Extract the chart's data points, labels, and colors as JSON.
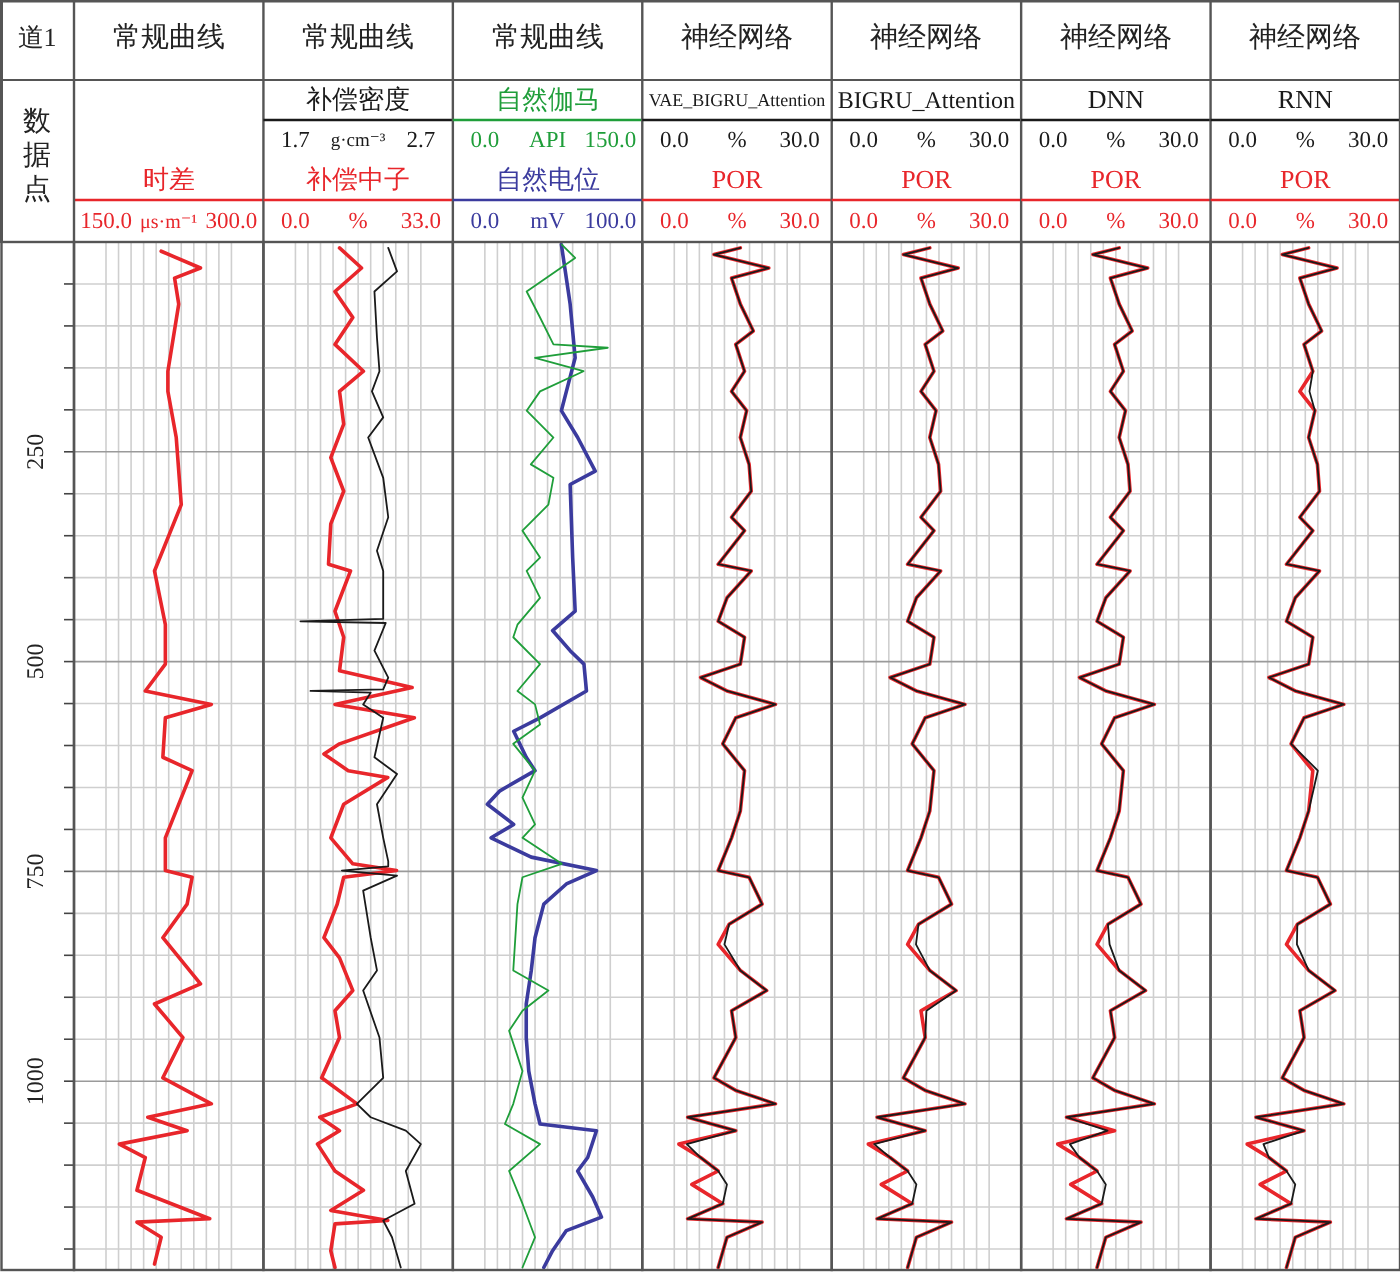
{
  "chart_data": [
    {
      "type": "line",
      "title": "常规曲线",
      "ylabel": "数据点",
      "annotations": [
        "道1"
      ],
      "orientation": "horizontal",
      "grid": true,
      "ylim": [
        1225,
        0
      ],
      "yticks": [
        {
          "value": 50,
          "label": null
        },
        {
          "value": 100,
          "label": null
        },
        {
          "value": 150,
          "label": null
        },
        {
          "value": 200,
          "label": null
        },
        250,
        {
          "value": 300,
          "label": null
        },
        {
          "value": 350,
          "label": null
        },
        {
          "value": 400,
          "label": null
        },
        {
          "value": 450,
          "label": null
        },
        500,
        {
          "value": 550,
          "label": null
        },
        {
          "value": 600,
          "label": null
        },
        {
          "value": 650,
          "label": null
        },
        {
          "value": 700,
          "label": null
        },
        750,
        {
          "value": 800,
          "label": null
        },
        {
          "value": 850,
          "label": null
        },
        {
          "value": 900,
          "label": null
        },
        {
          "value": 950,
          "label": null
        },
        1000,
        {
          "value": 1050,
          "label": null
        },
        {
          "value": 1100,
          "label": null
        },
        {
          "value": 1150,
          "label": null
        },
        {
          "value": 1200,
          "label": null
        }
      ],
      "xlim": [
        150,
        300
      ],
      "xticks": [
        {
          "value": 150,
          "label": "150.0"
        },
        {
          "value": 225,
          "label": "μs·m⁻¹"
        },
        {
          "value": 300,
          "label": "300.0"
        }
      ],
      "series": [
        {
          "name": "时差",
          "color": "#e8262b",
          "x": [
            11,
            31,
            43,
            74,
            154,
            178,
            233,
            313,
            392,
            456,
            503,
            535,
            551,
            567,
            614,
            630,
            710,
            749,
            757,
            789,
            829,
            884,
            908,
            948,
            996,
            1027,
            1043,
            1059,
            1075,
            1091,
            1130,
            1164,
            1168,
            1186,
            1218
          ],
          "values": [
            216,
            263,
            232,
            237,
            224,
            224,
            234,
            240,
            208,
            221,
            221,
            197,
            276,
            221,
            218,
            253,
            221,
            221,
            253,
            247,
            218,
            263,
            208,
            242,
            218,
            276,
            200,
            247,
            166,
            197,
            187,
            274,
            187,
            216,
            208
          ]
        }
      ]
    },
    {
      "type": "line",
      "title": "常规曲线",
      "orientation": "horizontal",
      "grid": true,
      "tick_labels": "x",
      "ylim": [
        1225,
        0
      ],
      "yticks": [
        {
          "value": 50,
          "label": null
        },
        {
          "value": 100,
          "label": null
        },
        {
          "value": 150,
          "label": null
        },
        {
          "value": 200,
          "label": null
        },
        250,
        {
          "value": 300,
          "label": null
        },
        {
          "value": 350,
          "label": null
        },
        {
          "value": 400,
          "label": null
        },
        {
          "value": 450,
          "label": null
        },
        500,
        {
          "value": 550,
          "label": null
        },
        {
          "value": 600,
          "label": null
        },
        {
          "value": 650,
          "label": null
        },
        {
          "value": 700,
          "label": null
        },
        750,
        {
          "value": 800,
          "label": null
        },
        {
          "value": 850,
          "label": null
        },
        {
          "value": 900,
          "label": null
        },
        {
          "value": 950,
          "label": null
        },
        1000,
        {
          "value": 1050,
          "label": null
        },
        {
          "value": 1100,
          "label": null
        },
        {
          "value": 1150,
          "label": null
        },
        {
          "value": 1200,
          "label": null
        }
      ],
      "xlim": [
        0,
        33
      ],
      "xticks": [
        {
          "value": 0,
          "label": "0.0"
        },
        {
          "value": 16.5,
          "label": "%"
        },
        {
          "value": 33,
          "label": "33.0"
        }
      ],
      "x2lim": [
        1.7,
        2.7
      ],
      "x2ticks": [
        1.7,
        {
          "value": 2.2,
          "label": "g·cm⁻³"
        },
        2.7
      ],
      "series": [
        {
          "name": "补偿密度",
          "color": "#1a1a1a",
          "axis": "x2",
          "x": [
            7,
            35,
            59,
            114,
            154,
            178,
            209,
            233,
            281,
            328,
            368,
            392,
            449,
            452,
            454,
            487,
            519,
            533,
            535,
            537,
            551,
            567,
            614,
            634,
            670,
            710,
            738,
            744,
            749,
            755,
            773,
            829,
            868,
            892,
            948,
            996,
            1027,
            1043,
            1059,
            1075,
            1107,
            1146,
            1166,
            1186,
            1222
          ],
          "values": [
            2.44,
            2.51,
            2.33,
            2.35,
            2.37,
            2.31,
            2.4,
            2.28,
            2.4,
            2.44,
            2.35,
            2.4,
            2.4,
            1.74,
            2.42,
            2.33,
            2.44,
            2.4,
            1.82,
            2.3,
            2.24,
            2.4,
            2.33,
            2.51,
            2.35,
            2.4,
            2.44,
            2.44,
            2.07,
            2.51,
            2.24,
            2.3,
            2.35,
            2.24,
            2.37,
            2.4,
            2.19,
            2.3,
            2.58,
            2.7,
            2.58,
            2.65,
            2.4,
            2.47,
            2.54
          ]
        },
        {
          "name": "补偿中子",
          "color": "#e8262b",
          "x": [
            7,
            31,
            59,
            90,
            122,
            154,
            178,
            217,
            257,
            297,
            336,
            384,
            392,
            440,
            471,
            511,
            531,
            551,
            567,
            598,
            610,
            630,
            638,
            670,
            710,
            741,
            749,
            757,
            789,
            829,
            853,
            892,
            916,
            948,
            996,
            1027,
            1043,
            1059,
            1075,
            1107,
            1130,
            1154,
            1166,
            1170,
            1202,
            1222
          ],
          "values": [
            11.6,
            17.4,
            10.4,
            15.1,
            10.4,
            17.9,
            11.6,
            12.7,
            9.3,
            12.7,
            9.3,
            8.7,
            14.5,
            10.4,
            12.7,
            11.6,
            30.7,
            10.4,
            31.3,
            11.6,
            7.5,
            13.9,
            24.3,
            12.7,
            9.3,
            15.1,
            26.6,
            12.7,
            11.0,
            7.5,
            11.6,
            15.1,
            10.4,
            11.6,
            6.9,
            16.2,
            6.4,
            11.6,
            5.8,
            10.4,
            17.9,
            9.3,
            24.3,
            10.4,
            9.3,
            10.4
          ]
        }
      ]
    },
    {
      "type": "line",
      "title": "常规曲线",
      "orientation": "horizontal",
      "grid": true,
      "tick_labels": "x",
      "ylim": [
        1225,
        0
      ],
      "yticks": [
        {
          "value": 50,
          "label": null
        },
        {
          "value": 100,
          "label": null
        },
        {
          "value": 150,
          "label": null
        },
        {
          "value": 200,
          "label": null
        },
        250,
        {
          "value": 300,
          "label": null
        },
        {
          "value": 350,
          "label": null
        },
        {
          "value": 400,
          "label": null
        },
        {
          "value": 450,
          "label": null
        },
        500,
        {
          "value": 550,
          "label": null
        },
        {
          "value": 600,
          "label": null
        },
        {
          "value": 650,
          "label": null
        },
        {
          "value": 700,
          "label": null
        },
        750,
        {
          "value": 800,
          "label": null
        },
        {
          "value": 850,
          "label": null
        },
        {
          "value": 900,
          "label": null
        },
        {
          "value": 950,
          "label": null
        },
        1000,
        {
          "value": 1050,
          "label": null
        },
        {
          "value": 1100,
          "label": null
        },
        {
          "value": 1150,
          "label": null
        },
        {
          "value": 1200,
          "label": null
        }
      ],
      "xlim": [
        0,
        100
      ],
      "xticks": [
        {
          "value": 0,
          "label": "0.0"
        },
        {
          "value": 50,
          "label": "mV"
        },
        {
          "value": 100,
          "label": "100.0"
        }
      ],
      "x2lim": [
        0,
        150
      ],
      "x2ticks": [
        {
          "value": 0,
          "label": "0.0"
        },
        {
          "value": 75,
          "label": "API"
        },
        {
          "value": 150,
          "label": "150.0"
        }
      ],
      "series": [
        {
          "name": "自然伽马",
          "color": "#1f9e3a",
          "axis": "x2",
          "x": [
            3,
            19,
            59,
            90,
            122,
            126,
            138,
            154,
            178,
            201,
            233,
            265,
            281,
            313,
            344,
            376,
            392,
            424,
            456,
            471,
            503,
            535,
            551,
            575,
            598,
            630,
            662,
            694,
            710,
            741,
            757,
            789,
            868,
            892,
            916,
            940,
            988,
            1027,
            1051,
            1075,
            1107,
            1146,
            1186,
            1222
          ],
          "values": [
            92,
            108,
            50,
            66,
            82,
            147,
            60,
            118,
            66,
            50,
            82,
            55,
            82,
            76,
            45,
            66,
            50,
            66,
            39,
            34,
            66,
            39,
            60,
            66,
            34,
            60,
            45,
            60,
            45,
            92,
            45,
            39,
            34,
            76,
            45,
            29,
            45,
            34,
            24,
            66,
            29,
            45,
            60,
            45
          ]
        },
        {
          "name": "自然电位",
          "color": "#3b3b9e",
          "x": [
            3,
            74,
            138,
            178,
            201,
            233,
            273,
            289,
            376,
            440,
            463,
            487,
            503,
            535,
            567,
            583,
            614,
            630,
            654,
            670,
            694,
            710,
            733,
            749,
            765,
            789,
            829,
            868,
            908,
            948,
            988,
            1027,
            1051,
            1059,
            1091,
            1107,
            1138,
            1162,
            1178,
            1202,
            1222
          ],
          "values": [
            61,
            68,
            72,
            65,
            61,
            74,
            88,
            68,
            70,
            72,
            54,
            68,
            79,
            81,
            44,
            23,
            33,
            40,
            12,
            2,
            23,
            5,
            37,
            89,
            65,
            47,
            40,
            37,
            33,
            33,
            35,
            40,
            44,
            89,
            82,
            74,
            86,
            93,
            65,
            54,
            47
          ]
        }
      ]
    },
    {
      "type": "line",
      "title": "神经网络",
      "orientation": "horizontal",
      "grid": true,
      "tick_labels": "x",
      "ylim": [
        1225,
        0
      ],
      "yticks": [
        {
          "value": 50,
          "label": null
        },
        {
          "value": 100,
          "label": null
        },
        {
          "value": 150,
          "label": null
        },
        {
          "value": 200,
          "label": null
        },
        250,
        {
          "value": 300,
          "label": null
        },
        {
          "value": 350,
          "label": null
        },
        {
          "value": 400,
          "label": null
        },
        {
          "value": 450,
          "label": null
        },
        500,
        {
          "value": 550,
          "label": null
        },
        {
          "value": 600,
          "label": null
        },
        {
          "value": 650,
          "label": null
        },
        {
          "value": 700,
          "label": null
        },
        750,
        {
          "value": 800,
          "label": null
        },
        {
          "value": 850,
          "label": null
        },
        {
          "value": 900,
          "label": null
        },
        {
          "value": 950,
          "label": null
        },
        1000,
        {
          "value": 1050,
          "label": null
        },
        {
          "value": 1100,
          "label": null
        },
        {
          "value": 1150,
          "label": null
        },
        {
          "value": 1200,
          "label": null
        }
      ],
      "xlim": [
        0,
        30
      ],
      "xticks": [
        {
          "value": 0,
          "label": "0.0"
        },
        {
          "value": 15,
          "label": "%"
        },
        {
          "value": 30,
          "label": "30.0"
        }
      ],
      "x2lim": [
        0,
        30
      ],
      "x2ticks": [
        {
          "value": 0,
          "label": "0.0"
        },
        {
          "value": 15,
          "label": "%"
        },
        {
          "value": 30,
          "label": "30.0"
        }
      ],
      "series": [
        {
          "name": "VAE_BIGRU_Attention",
          "color": "#1a1a1a",
          "axis": "x2",
          "x": [
            7,
            15,
            31,
            43,
            74,
            106,
            122,
            154,
            178,
            201,
            233,
            265,
            297,
            328,
            344,
            384,
            392,
            424,
            452,
            471,
            503,
            519,
            535,
            551,
            567,
            598,
            630,
            678,
            710,
            749,
            757,
            789,
            813,
            837,
            868,
            892,
            916,
            948,
            996,
            1011,
            1027,
            1043,
            1059,
            1075,
            1091,
            1107,
            1123,
            1146,
            1164,
            1168,
            1186,
            1222
          ],
          "values": [
            15.8,
            9.5,
            22.6,
            13.7,
            15.8,
            18.9,
            14.7,
            16.8,
            13.7,
            17.3,
            15.8,
            17.9,
            18.4,
            13.7,
            16.8,
            10.5,
            18.4,
            12.6,
            10.5,
            16.8,
            15.8,
            6.3,
            12.6,
            24.2,
            14.7,
            11.6,
            16.8,
            15.8,
            13.7,
            10.5,
            17.9,
            21.0,
            13.1,
            12.0,
            15.8,
            22.1,
            13.7,
            14.7,
            9.5,
            14.7,
            24.2,
            3.2,
            14.7,
            3.0,
            6.3,
            10.5,
            12.6,
            11.6,
            3.2,
            21.0,
            12.6,
            10.5
          ]
        },
        {
          "name": "POR",
          "color": "#e8262b",
          "x": [
            7,
            15,
            31,
            43,
            74,
            106,
            122,
            154,
            178,
            201,
            233,
            265,
            297,
            328,
            344,
            384,
            392,
            424,
            452,
            471,
            503,
            519,
            535,
            551,
            567,
            598,
            630,
            678,
            710,
            749,
            757,
            789,
            813,
            837,
            868,
            892,
            916,
            948,
            996,
            1011,
            1027,
            1043,
            1059,
            1075,
            1091,
            1107,
            1123,
            1146,
            1164,
            1168,
            1186,
            1222
          ],
          "values": [
            15.8,
            9.5,
            22.6,
            13.7,
            15.8,
            18.9,
            14.7,
            16.8,
            13.7,
            17.3,
            15.8,
            17.9,
            18.4,
            13.7,
            16.8,
            10.5,
            18.4,
            12.6,
            10.5,
            16.8,
            15.8,
            6.3,
            12.6,
            24.2,
            14.7,
            11.6,
            16.8,
            15.8,
            13.7,
            10.5,
            17.9,
            21.0,
            13.1,
            10.5,
            15.8,
            22.1,
            13.7,
            14.7,
            9.5,
            14.7,
            24.2,
            3.2,
            14.7,
            1.1,
            6.3,
            10.5,
            4.2,
            11.6,
            3.2,
            21.0,
            12.6,
            10.5
          ]
        }
      ]
    },
    {
      "type": "line",
      "title": "神经网络",
      "orientation": "horizontal",
      "grid": true,
      "tick_labels": "x",
      "ylim": [
        1225,
        0
      ],
      "yticks": [
        {
          "value": 50,
          "label": null
        },
        {
          "value": 100,
          "label": null
        },
        {
          "value": 150,
          "label": null
        },
        {
          "value": 200,
          "label": null
        },
        250,
        {
          "value": 300,
          "label": null
        },
        {
          "value": 350,
          "label": null
        },
        {
          "value": 400,
          "label": null
        },
        {
          "value": 450,
          "label": null
        },
        500,
        {
          "value": 550,
          "label": null
        },
        {
          "value": 600,
          "label": null
        },
        {
          "value": 650,
          "label": null
        },
        {
          "value": 700,
          "label": null
        },
        750,
        {
          "value": 800,
          "label": null
        },
        {
          "value": 850,
          "label": null
        },
        {
          "value": 900,
          "label": null
        },
        {
          "value": 950,
          "label": null
        },
        1000,
        {
          "value": 1050,
          "label": null
        },
        {
          "value": 1100,
          "label": null
        },
        {
          "value": 1150,
          "label": null
        },
        {
          "value": 1200,
          "label": null
        }
      ],
      "xlim": [
        0,
        30
      ],
      "xticks": [
        {
          "value": 0,
          "label": "0.0"
        },
        {
          "value": 15,
          "label": "%"
        },
        {
          "value": 30,
          "label": "30.0"
        }
      ],
      "x2lim": [
        0,
        30
      ],
      "x2ticks": [
        {
          "value": 0,
          "label": "0.0"
        },
        {
          "value": 15,
          "label": "%"
        },
        {
          "value": 30,
          "label": "30.0"
        }
      ],
      "series": [
        {
          "name": "BIGRU_Attention",
          "color": "#1a1a1a",
          "axis": "x2",
          "x": [
            7,
            15,
            31,
            43,
            74,
            106,
            122,
            154,
            178,
            201,
            233,
            265,
            297,
            328,
            344,
            384,
            392,
            424,
            452,
            471,
            503,
            519,
            535,
            551,
            567,
            598,
            630,
            678,
            710,
            749,
            757,
            789,
            813,
            837,
            868,
            892,
            916,
            948,
            996,
            1011,
            1027,
            1043,
            1059,
            1075,
            1091,
            1107,
            1123,
            1146,
            1164,
            1168,
            1186,
            1222
          ],
          "values": [
            15.8,
            9.5,
            22.6,
            13.7,
            15.8,
            18.9,
            14.7,
            16.8,
            13.7,
            17.3,
            15.8,
            17.9,
            18.4,
            13.7,
            16.8,
            10.5,
            18.4,
            12.6,
            10.5,
            16.8,
            15.8,
            6.3,
            12.6,
            24.2,
            14.7,
            11.6,
            16.8,
            15.8,
            13.7,
            10.5,
            17.9,
            21.0,
            13.1,
            12.5,
            15.8,
            22.1,
            15.0,
            14.7,
            9.5,
            14.7,
            24.2,
            3.2,
            14.7,
            2.5,
            6.3,
            10.5,
            12.6,
            11.6,
            3.2,
            21.0,
            12.6,
            10.5
          ]
        },
        {
          "name": "POR",
          "color": "#e8262b",
          "x": [
            7,
            15,
            31,
            43,
            74,
            106,
            122,
            154,
            178,
            201,
            233,
            265,
            297,
            328,
            344,
            384,
            392,
            424,
            452,
            471,
            503,
            519,
            535,
            551,
            567,
            598,
            630,
            678,
            710,
            749,
            757,
            789,
            813,
            837,
            868,
            892,
            916,
            948,
            996,
            1011,
            1027,
            1043,
            1059,
            1075,
            1091,
            1107,
            1123,
            1146,
            1164,
            1168,
            1186,
            1222
          ],
          "values": [
            15.8,
            9.5,
            22.6,
            13.7,
            15.8,
            18.9,
            14.7,
            16.8,
            13.7,
            17.3,
            15.8,
            17.9,
            18.4,
            13.7,
            16.8,
            10.5,
            18.4,
            12.6,
            10.5,
            16.8,
            15.8,
            6.3,
            12.6,
            24.2,
            14.7,
            11.6,
            16.8,
            15.8,
            13.7,
            10.5,
            17.9,
            21.0,
            13.1,
            10.5,
            15.8,
            22.1,
            13.7,
            14.7,
            9.5,
            14.7,
            24.2,
            3.2,
            14.7,
            1.1,
            6.3,
            10.5,
            4.2,
            11.6,
            3.2,
            21.0,
            12.6,
            10.5
          ]
        }
      ]
    },
    {
      "type": "line",
      "title": "神经网络",
      "orientation": "horizontal",
      "grid": true,
      "tick_labels": "x",
      "ylim": [
        1225,
        0
      ],
      "yticks": [
        {
          "value": 50,
          "label": null
        },
        {
          "value": 100,
          "label": null
        },
        {
          "value": 150,
          "label": null
        },
        {
          "value": 200,
          "label": null
        },
        250,
        {
          "value": 300,
          "label": null
        },
        {
          "value": 350,
          "label": null
        },
        {
          "value": 400,
          "label": null
        },
        {
          "value": 450,
          "label": null
        },
        500,
        {
          "value": 550,
          "label": null
        },
        {
          "value": 600,
          "label": null
        },
        {
          "value": 650,
          "label": null
        },
        {
          "value": 700,
          "label": null
        },
        750,
        {
          "value": 800,
          "label": null
        },
        {
          "value": 850,
          "label": null
        },
        {
          "value": 900,
          "label": null
        },
        {
          "value": 950,
          "label": null
        },
        1000,
        {
          "value": 1050,
          "label": null
        },
        {
          "value": 1100,
          "label": null
        },
        {
          "value": 1150,
          "label": null
        },
        {
          "value": 1200,
          "label": null
        }
      ],
      "xlim": [
        0,
        30
      ],
      "xticks": [
        {
          "value": 0,
          "label": "0.0"
        },
        {
          "value": 15,
          "label": "%"
        },
        {
          "value": 30,
          "label": "30.0"
        }
      ],
      "x2lim": [
        0,
        30
      ],
      "x2ticks": [
        {
          "value": 0,
          "label": "0.0"
        },
        {
          "value": 15,
          "label": "%"
        },
        {
          "value": 30,
          "label": "30.0"
        }
      ],
      "series": [
        {
          "name": "DNN",
          "color": "#1a1a1a",
          "axis": "x2",
          "x": [
            7,
            15,
            31,
            43,
            74,
            106,
            122,
            154,
            178,
            201,
            233,
            265,
            297,
            328,
            344,
            384,
            392,
            424,
            452,
            471,
            503,
            519,
            535,
            551,
            567,
            598,
            630,
            678,
            710,
            749,
            757,
            789,
            813,
            837,
            868,
            892,
            916,
            948,
            996,
            1011,
            1027,
            1043,
            1059,
            1075,
            1091,
            1107,
            1123,
            1146,
            1164,
            1168,
            1186,
            1222
          ],
          "values": [
            15.8,
            9.5,
            22.6,
            13.7,
            15.8,
            18.9,
            14.7,
            16.8,
            13.7,
            17.3,
            15.8,
            17.9,
            18.4,
            13.7,
            16.8,
            10.5,
            18.4,
            12.6,
            10.5,
            16.8,
            15.8,
            6.3,
            12.6,
            24.2,
            14.7,
            11.6,
            16.8,
            15.8,
            13.7,
            10.5,
            17.9,
            21.0,
            13.1,
            13.5,
            15.8,
            22.1,
            13.7,
            14.7,
            9.5,
            14.7,
            24.2,
            3.2,
            13.0,
            4.0,
            6.3,
            10.5,
            12.6,
            11.6,
            3.2,
            21.0,
            12.6,
            10.5
          ]
        },
        {
          "name": "POR",
          "color": "#e8262b",
          "x": [
            7,
            15,
            31,
            43,
            74,
            106,
            122,
            154,
            178,
            201,
            233,
            265,
            297,
            328,
            344,
            384,
            392,
            424,
            452,
            471,
            503,
            519,
            535,
            551,
            567,
            598,
            630,
            678,
            710,
            749,
            757,
            789,
            813,
            837,
            868,
            892,
            916,
            948,
            996,
            1011,
            1027,
            1043,
            1059,
            1075,
            1091,
            1107,
            1123,
            1146,
            1164,
            1168,
            1186,
            1222
          ],
          "values": [
            15.8,
            9.5,
            22.6,
            13.7,
            15.8,
            18.9,
            14.7,
            16.8,
            13.7,
            17.3,
            15.8,
            17.9,
            18.4,
            13.7,
            16.8,
            10.5,
            18.4,
            12.6,
            10.5,
            16.8,
            15.8,
            6.3,
            12.6,
            24.2,
            14.7,
            11.6,
            16.8,
            15.8,
            13.7,
            10.5,
            17.9,
            21.0,
            13.1,
            10.5,
            15.8,
            22.1,
            13.7,
            14.7,
            9.5,
            14.7,
            24.2,
            3.2,
            14.7,
            1.1,
            6.3,
            10.5,
            4.2,
            11.6,
            3.2,
            21.0,
            12.6,
            10.5
          ]
        }
      ]
    },
    {
      "type": "line",
      "title": "神经网络",
      "orientation": "horizontal",
      "grid": true,
      "tick_labels": "x",
      "ylim": [
        1225,
        0
      ],
      "yticks": [
        {
          "value": 50,
          "label": null
        },
        {
          "value": 100,
          "label": null
        },
        {
          "value": 150,
          "label": null
        },
        {
          "value": 200,
          "label": null
        },
        250,
        {
          "value": 300,
          "label": null
        },
        {
          "value": 350,
          "label": null
        },
        {
          "value": 400,
          "label": null
        },
        {
          "value": 450,
          "label": null
        },
        500,
        {
          "value": 550,
          "label": null
        },
        {
          "value": 600,
          "label": null
        },
        {
          "value": 650,
          "label": null
        },
        {
          "value": 700,
          "label": null
        },
        750,
        {
          "value": 800,
          "label": null
        },
        {
          "value": 850,
          "label": null
        },
        {
          "value": 900,
          "label": null
        },
        {
          "value": 950,
          "label": null
        },
        1000,
        {
          "value": 1050,
          "label": null
        },
        {
          "value": 1100,
          "label": null
        },
        {
          "value": 1150,
          "label": null
        },
        {
          "value": 1200,
          "label": null
        }
      ],
      "xlim": [
        0,
        30
      ],
      "xticks": [
        {
          "value": 0,
          "label": "0.0"
        },
        {
          "value": 15,
          "label": "%"
        },
        {
          "value": 30,
          "label": "30.0"
        }
      ],
      "x2lim": [
        0,
        30
      ],
      "x2ticks": [
        {
          "value": 0,
          "label": "0.0"
        },
        {
          "value": 15,
          "label": "%"
        },
        {
          "value": 30,
          "label": "30.0"
        }
      ],
      "series": [
        {
          "name": "RNN",
          "color": "#1a1a1a",
          "axis": "x2",
          "x": [
            7,
            15,
            31,
            43,
            74,
            106,
            122,
            154,
            178,
            201,
            233,
            265,
            297,
            328,
            344,
            384,
            392,
            424,
            452,
            471,
            503,
            519,
            535,
            551,
            567,
            598,
            630,
            678,
            710,
            749,
            757,
            789,
            813,
            837,
            868,
            892,
            916,
            948,
            996,
            1011,
            1027,
            1043,
            1059,
            1075,
            1091,
            1107,
            1123,
            1146,
            1164,
            1168,
            1186,
            1222
          ],
          "values": [
            15.8,
            9.5,
            22.6,
            13.7,
            15.8,
            18.9,
            14.7,
            16.8,
            16.0,
            17.3,
            15.8,
            17.9,
            18.4,
            13.7,
            16.8,
            10.5,
            18.4,
            12.6,
            10.5,
            16.8,
            15.8,
            6.3,
            12.6,
            24.2,
            14.7,
            11.6,
            18.0,
            15.8,
            13.7,
            10.5,
            17.9,
            21.0,
            13.1,
            13.0,
            15.8,
            22.1,
            13.7,
            14.7,
            9.5,
            14.7,
            24.2,
            3.2,
            14.7,
            5.0,
            6.3,
            10.5,
            12.6,
            11.6,
            3.2,
            21.0,
            12.6,
            10.5
          ]
        },
        {
          "name": "POR",
          "color": "#e8262b",
          "x": [
            7,
            15,
            31,
            43,
            74,
            106,
            122,
            154,
            178,
            201,
            233,
            265,
            297,
            328,
            344,
            384,
            392,
            424,
            452,
            471,
            503,
            519,
            535,
            551,
            567,
            598,
            630,
            678,
            710,
            749,
            757,
            789,
            813,
            837,
            868,
            892,
            916,
            948,
            996,
            1011,
            1027,
            1043,
            1059,
            1075,
            1091,
            1107,
            1123,
            1146,
            1164,
            1168,
            1186,
            1222
          ],
          "values": [
            15.8,
            9.5,
            22.6,
            13.7,
            15.8,
            18.9,
            14.7,
            16.8,
            13.7,
            17.3,
            15.8,
            17.9,
            18.4,
            13.7,
            16.8,
            10.5,
            18.4,
            12.6,
            10.5,
            16.8,
            15.8,
            6.3,
            12.6,
            24.2,
            14.7,
            11.6,
            16.8,
            15.8,
            13.7,
            10.5,
            17.9,
            21.0,
            13.1,
            10.5,
            15.8,
            22.1,
            13.7,
            14.7,
            9.5,
            14.7,
            24.2,
            3.2,
            14.7,
            1.1,
            6.3,
            10.5,
            4.2,
            11.6,
            3.2,
            21.0,
            12.6,
            10.5
          ]
        }
      ]
    }
  ]
}
